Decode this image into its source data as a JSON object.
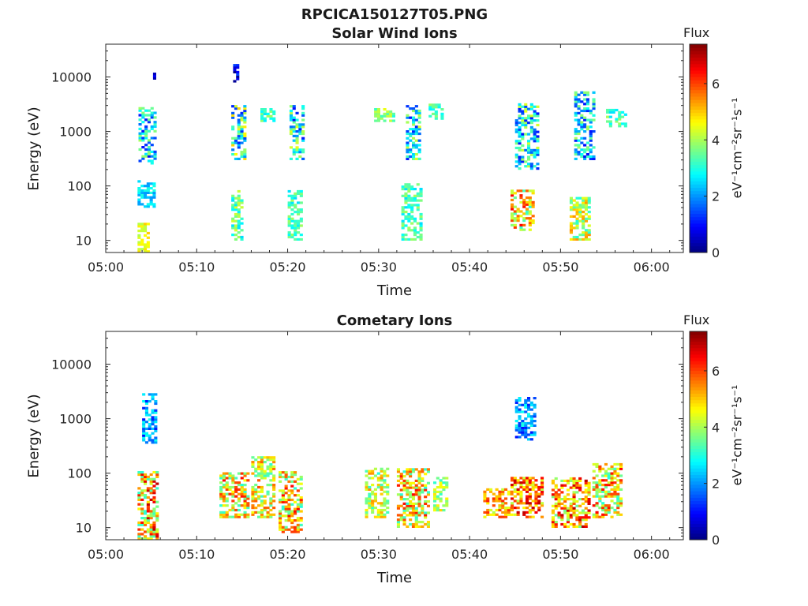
{
  "figure_title": "RPCICA150127T05.PNG",
  "colorbar": {
    "title": "Flux",
    "label": "eV⁻¹cm⁻²sr⁻¹s⁻¹",
    "ticks": [
      "0",
      "2",
      "4",
      "6"
    ],
    "range": [
      0,
      7.4
    ],
    "colormap": "jet"
  },
  "chart_data": [
    {
      "type": "heatmap",
      "title": "Solar Wind Ions",
      "xlabel": "Time",
      "ylabel": "Energy (eV)",
      "x_ticks": [
        "05:00",
        "05:10",
        "05:20",
        "05:30",
        "05:40",
        "05:50",
        "06:00"
      ],
      "y_ticks": [
        "10",
        "100",
        "1000",
        "10000"
      ],
      "yscale": "log",
      "ylim": [
        6,
        40000
      ],
      "xlim_minutes": [
        0,
        63.5
      ],
      "clusters": [
        {
          "t": [
            3.5,
            4.8
          ],
          "e": [
            6,
            20
          ],
          "flux": [
            4,
            5
          ]
        },
        {
          "t": [
            3.5,
            5.3
          ],
          "e": [
            40,
            120
          ],
          "flux": [
            2,
            3
          ]
        },
        {
          "t": [
            3.6,
            5.5
          ],
          "e": [
            250,
            2800
          ],
          "flux": [
            1,
            4
          ]
        },
        {
          "t": [
            5.2,
            5.5
          ],
          "e": [
            9000,
            13000
          ],
          "flux": [
            0,
            1
          ]
        },
        {
          "t": [
            13.8,
            15.0
          ],
          "e": [
            10,
            80
          ],
          "flux": [
            2.5,
            4.5
          ]
        },
        {
          "t": [
            13.8,
            15.2
          ],
          "e": [
            300,
            3000
          ],
          "flux": [
            1,
            5
          ]
        },
        {
          "t": [
            14.0,
            14.6
          ],
          "e": [
            8000,
            16000
          ],
          "flux": [
            0,
            1.5
          ]
        },
        {
          "t": [
            20.0,
            21.5
          ],
          "e": [
            10,
            80
          ],
          "flux": [
            2.5,
            4
          ]
        },
        {
          "t": [
            20.2,
            21.6
          ],
          "e": [
            300,
            3000
          ],
          "flux": [
            1,
            4.5
          ]
        },
        {
          "t": [
            17.0,
            18.5
          ],
          "e": [
            1500,
            2500
          ],
          "flux": [
            2.5,
            4
          ]
        },
        {
          "t": [
            32.5,
            34.5
          ],
          "e": [
            10,
            110
          ],
          "flux": [
            2.5,
            4
          ]
        },
        {
          "t": [
            33.0,
            34.5
          ],
          "e": [
            300,
            3000
          ],
          "flux": [
            1,
            4.5
          ]
        },
        {
          "t": [
            29.5,
            31.5
          ],
          "e": [
            1500,
            2500
          ],
          "flux": [
            3,
            4.5
          ]
        },
        {
          "t": [
            35.5,
            37.0
          ],
          "e": [
            1500,
            3000
          ],
          "flux": [
            2.5,
            4
          ]
        },
        {
          "t": [
            44.5,
            47.0
          ],
          "e": [
            15,
            80
          ],
          "flux": [
            3,
            6.5
          ]
        },
        {
          "t": [
            45.0,
            47.5
          ],
          "e": [
            200,
            3000
          ],
          "flux": [
            1,
            4.5
          ]
        },
        {
          "t": [
            51.0,
            53.0
          ],
          "e": [
            10,
            60
          ],
          "flux": [
            3,
            5.5
          ]
        },
        {
          "t": [
            51.5,
            53.5
          ],
          "e": [
            300,
            5000
          ],
          "flux": [
            1,
            4
          ]
        },
        {
          "t": [
            55.0,
            57.0
          ],
          "e": [
            1200,
            2500
          ],
          "flux": [
            2.5,
            4
          ]
        }
      ]
    },
    {
      "type": "heatmap",
      "title": "Cometary Ions",
      "xlabel": "Time",
      "ylabel": "Energy (eV)",
      "x_ticks": [
        "05:00",
        "05:10",
        "05:20",
        "05:30",
        "05:40",
        "05:50",
        "06:00"
      ],
      "y_ticks": [
        "10",
        "100",
        "1000",
        "10000"
      ],
      "yscale": "log",
      "ylim": [
        6,
        40000
      ],
      "xlim_minutes": [
        0,
        63.5
      ],
      "clusters": [
        {
          "t": [
            3.5,
            5.5
          ],
          "e": [
            6,
            100
          ],
          "flux": [
            3,
            7
          ]
        },
        {
          "t": [
            4.0,
            5.5
          ],
          "e": [
            350,
            2800
          ],
          "flux": [
            1,
            3
          ]
        },
        {
          "t": [
            12.5,
            15.5
          ],
          "e": [
            15,
            100
          ],
          "flux": [
            3,
            6.5
          ]
        },
        {
          "t": [
            16.0,
            18.5
          ],
          "e": [
            15,
            200
          ],
          "flux": [
            3,
            6
          ]
        },
        {
          "t": [
            19.0,
            21.5
          ],
          "e": [
            8,
            100
          ],
          "flux": [
            3,
            6.5
          ]
        },
        {
          "t": [
            28.5,
            31.0
          ],
          "e": [
            15,
            120
          ],
          "flux": [
            3,
            5.5
          ]
        },
        {
          "t": [
            32.0,
            35.5
          ],
          "e": [
            10,
            120
          ],
          "flux": [
            3,
            6.5
          ]
        },
        {
          "t": [
            36.0,
            37.5
          ],
          "e": [
            20,
            80
          ],
          "flux": [
            3,
            5
          ]
        },
        {
          "t": [
            41.5,
            44.5
          ],
          "e": [
            15,
            50
          ],
          "flux": [
            4,
            6.5
          ]
        },
        {
          "t": [
            44.5,
            48.0
          ],
          "e": [
            15,
            80
          ],
          "flux": [
            4,
            7
          ]
        },
        {
          "t": [
            49.0,
            53.0
          ],
          "e": [
            10,
            80
          ],
          "flux": [
            3.5,
            7
          ]
        },
        {
          "t": [
            53.5,
            56.5
          ],
          "e": [
            15,
            150
          ],
          "flux": [
            3,
            6.5
          ]
        },
        {
          "t": [
            45.0,
            47.0
          ],
          "e": [
            400,
            2500
          ],
          "flux": [
            1,
            3
          ]
        }
      ]
    }
  ]
}
